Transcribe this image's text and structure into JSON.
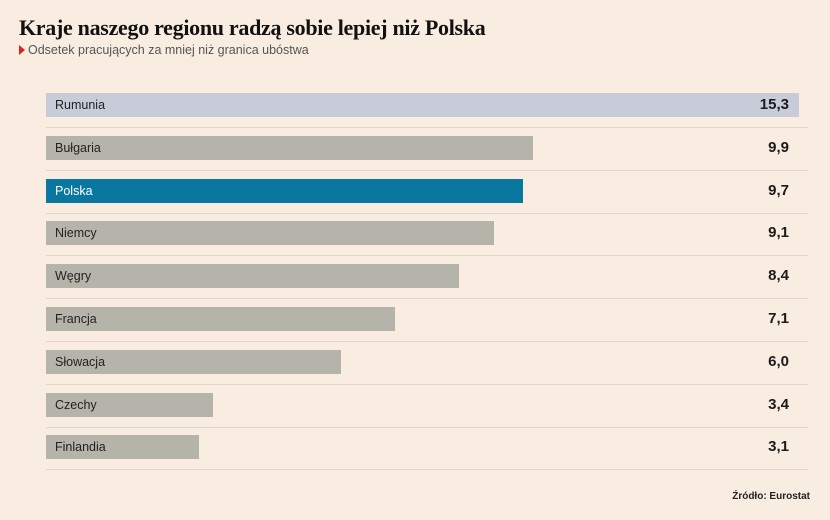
{
  "header": {
    "title": "Kraje naszego regionu radzą sobie lepiej niż Polska",
    "subtitle": "Odsetek pracujących za mniej niż granica ubóstwa"
  },
  "source": "Źródło: Eurostat",
  "colors": {
    "background": "#f9ede1",
    "bar_default": "#b5b4aa",
    "bar_top": "#c8ccd8",
    "bar_highlight": "#0a77a0",
    "marker": "#d9271c"
  },
  "chart_data": {
    "type": "bar",
    "orientation": "horizontal",
    "title": "Kraje naszego regionu radzą sobie lepiej niż Polska",
    "subtitle": "Odsetek pracujących za mniej niż granica ubóstwa",
    "categories": [
      "Rumunia",
      "Bułgaria",
      "Polska",
      "Niemcy",
      "Węgry",
      "Francja",
      "Słowacja",
      "Czechy",
      "Finlandia"
    ],
    "values": [
      15.3,
      9.9,
      9.7,
      9.1,
      8.4,
      7.1,
      6.0,
      3.4,
      3.1
    ],
    "value_labels": [
      "15,3",
      "9,9",
      "9,7",
      "9,1",
      "8,4",
      "7,1",
      "6,0",
      "3,4",
      "3,1"
    ],
    "highlight": "Polska",
    "xlim": [
      0,
      15.3
    ],
    "grid": false
  }
}
